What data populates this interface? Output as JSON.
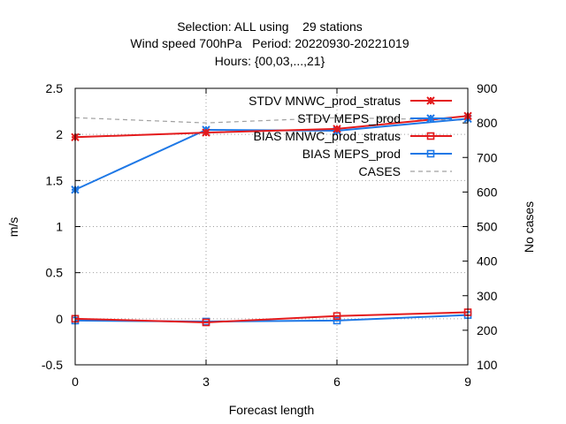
{
  "chart_data": {
    "type": "line",
    "title_lines": [
      "Selection: ALL using    29 stations",
      "Wind speed 700hPa   Period: 20220930-20221019",
      "Hours: {00,03,...,21}"
    ],
    "xlabel": "Forecast length",
    "ylabel": "m/s",
    "y2label": "No cases",
    "x": [
      0,
      3,
      6,
      9
    ],
    "xlim": [
      0,
      9
    ],
    "xticks": [
      "0",
      "3",
      "6",
      "9"
    ],
    "ylim": [
      -0.5,
      2.5
    ],
    "yticks": [
      "-0.5",
      "0",
      "0.5",
      "1",
      "1.5",
      "2",
      "2.5"
    ],
    "y2lim": [
      100,
      900
    ],
    "y2ticks": [
      "100",
      "200",
      "300",
      "400",
      "500",
      "600",
      "700",
      "800",
      "900"
    ],
    "grid": true,
    "legend_position": "top-right",
    "series": [
      {
        "name": "STDV MNWC_prod_stratus",
        "axis": "y",
        "marker": "star",
        "color": "#e41a1c",
        "dash": false,
        "values": [
          1.97,
          2.02,
          2.06,
          2.2
        ]
      },
      {
        "name": "STDV MEPS_prod",
        "axis": "y",
        "marker": "star",
        "color": "#1e78e6",
        "dash": false,
        "values": [
          1.4,
          2.05,
          2.04,
          2.17
        ]
      },
      {
        "name": "BIAS MNWC_prod_stratus",
        "axis": "y",
        "marker": "square",
        "color": "#e41a1c",
        "dash": false,
        "values": [
          0.0,
          -0.04,
          0.03,
          0.07
        ]
      },
      {
        "name": "BIAS MEPS_prod",
        "axis": "y",
        "marker": "square",
        "color": "#1e78e6",
        "dash": false,
        "values": [
          -0.02,
          -0.03,
          -0.02,
          0.04
        ]
      },
      {
        "name": "CASES",
        "axis": "y2",
        "marker": "none",
        "color": "#a0a0a0",
        "dash": true,
        "values": [
          815,
          800,
          815,
          808
        ]
      }
    ]
  }
}
